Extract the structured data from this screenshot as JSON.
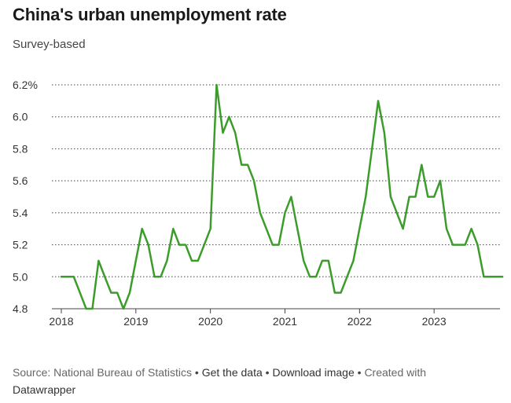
{
  "title": "China's urban unemployment rate",
  "subtitle": "Survey-based",
  "footer": {
    "source": "Source: National Bureau of Statistics",
    "get_data": "Get the data",
    "download": "Download image",
    "created_with": "Created with",
    "datawrapper": "Datawrapper",
    "separator": "•"
  },
  "colors": {
    "line": "#3c9c2b",
    "grid": "#444444",
    "text": "#333333"
  },
  "chart_data": {
    "type": "line",
    "title": "China's urban unemployment rate",
    "subtitle": "Survey-based",
    "xlabel": "",
    "ylabel": "",
    "ylim": [
      4.8,
      6.2
    ],
    "xlim": [
      2018.0,
      2024.0
    ],
    "grid": true,
    "y_ticks": [
      4.8,
      5.0,
      5.2,
      5.4,
      5.6,
      5.8,
      6.0,
      6.2
    ],
    "y_tick_labels": [
      "4.8",
      "5.0",
      "5.2",
      "5.4",
      "5.6",
      "5.8",
      "6.0",
      "6.2%"
    ],
    "x_ticks": [
      2018,
      2019,
      2020,
      2021,
      2022,
      2023
    ],
    "x_tick_labels": [
      "2018",
      "2019",
      "2020",
      "2021",
      "2022",
      "2023"
    ],
    "series": [
      {
        "x": [
          2018.0,
          2018.083,
          2018.167,
          2018.25,
          2018.333,
          2018.417,
          2018.5,
          2018.583,
          2018.667,
          2018.75,
          2018.833,
          2018.917,
          2019.0,
          2019.083,
          2019.167,
          2019.25,
          2019.333,
          2019.417,
          2019.5,
          2019.583,
          2019.667,
          2019.75,
          2019.833,
          2019.917,
          2020.0,
          2020.083,
          2020.167,
          2020.25,
          2020.333,
          2020.417,
          2020.5,
          2020.583,
          2020.667,
          2020.75,
          2020.833,
          2020.917,
          2021.0,
          2021.083,
          2021.167,
          2021.25,
          2021.333,
          2021.417,
          2021.5,
          2021.583,
          2021.667,
          2021.75,
          2021.833,
          2021.917,
          2022.0,
          2022.083,
          2022.167,
          2022.25,
          2022.333,
          2022.417,
          2022.5,
          2022.583,
          2022.667,
          2022.75,
          2022.833,
          2022.917,
          2023.0,
          2023.083,
          2023.167,
          2023.25,
          2023.333,
          2023.417,
          2023.5,
          2023.583,
          2023.667,
          2023.75,
          2023.833,
          2023.917
        ],
        "values": [
          5.0,
          5.0,
          5.0,
          4.9,
          4.8,
          4.8,
          5.1,
          5.0,
          4.9,
          4.9,
          4.8,
          4.9,
          5.1,
          5.3,
          5.2,
          5.0,
          5.0,
          5.1,
          5.3,
          5.2,
          5.2,
          5.1,
          5.1,
          5.2,
          5.3,
          6.2,
          5.9,
          6.0,
          5.9,
          5.7,
          5.7,
          5.6,
          5.4,
          5.3,
          5.2,
          5.2,
          5.4,
          5.5,
          5.3,
          5.1,
          5.0,
          5.0,
          5.1,
          5.1,
          4.9,
          4.9,
          5.0,
          5.1,
          5.3,
          5.5,
          5.8,
          6.1,
          5.9,
          5.5,
          5.4,
          5.3,
          5.5,
          5.5,
          5.7,
          5.5,
          5.5,
          5.6,
          5.3,
          5.2,
          5.2,
          5.2,
          5.3,
          5.2,
          5.0,
          5.0,
          5.0,
          5.0
        ]
      }
    ]
  }
}
